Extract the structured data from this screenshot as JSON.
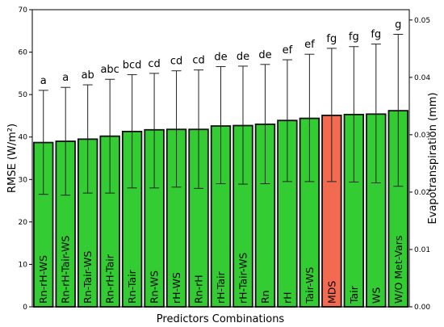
{
  "chart_data": {
    "type": "bar",
    "xlabel": "Predictors Combinations",
    "ylabel": "RMSE (W/m²)",
    "y2label": "Evapotranspiration (mm)",
    "ylim": [
      0,
      70
    ],
    "y_ticks": [
      0,
      10,
      20,
      30,
      40,
      50,
      60,
      70
    ],
    "y2lim": [
      0,
      0.0518
    ],
    "y2_ticks": [
      "0.00",
      "0.01",
      "0.02",
      "0.03",
      "0.04",
      "0.05"
    ],
    "categories": [
      "Rn-rH-WS",
      "Rn-rH-Tair-WS",
      "Rn-Tair-WS",
      "Rn-rH-Tair",
      "Rn-Tair",
      "Rn-WS",
      "rH-WS",
      "Rn-rH",
      "rH-Tair",
      "rH-Tair-WS",
      "Rn",
      "rH",
      "Tair-WS",
      "MDS",
      "Tair",
      "WS",
      "W/O Met-Vars"
    ],
    "values": [
      38.7,
      39.0,
      39.5,
      40.2,
      41.3,
      41.7,
      41.8,
      41.8,
      42.6,
      42.7,
      43.0,
      43.9,
      44.4,
      45.1,
      45.3,
      45.4,
      46.2
    ],
    "error_low": [
      26.5,
      26.3,
      26.8,
      26.8,
      28.0,
      28.0,
      28.2,
      27.9,
      29.0,
      28.9,
      29.0,
      29.5,
      29.5,
      29.5,
      29.4,
      29.2,
      28.4
    ],
    "error_high": [
      51.0,
      51.7,
      52.3,
      53.6,
      54.7,
      55.0,
      55.6,
      55.8,
      56.6,
      56.7,
      57.1,
      58.2,
      59.5,
      60.9,
      61.3,
      61.9,
      64.2
    ],
    "significance": [
      "a",
      "a",
      "ab",
      "abc",
      "bcd",
      "cd",
      "cd",
      "cd",
      "de",
      "de",
      "de",
      "ef",
      "ef",
      "fg",
      "fg",
      "fg",
      "g"
    ],
    "highlight": "MDS",
    "colors": {
      "bar": "#33cc33",
      "highlight": "#f26b50",
      "edge": "#111111"
    }
  }
}
